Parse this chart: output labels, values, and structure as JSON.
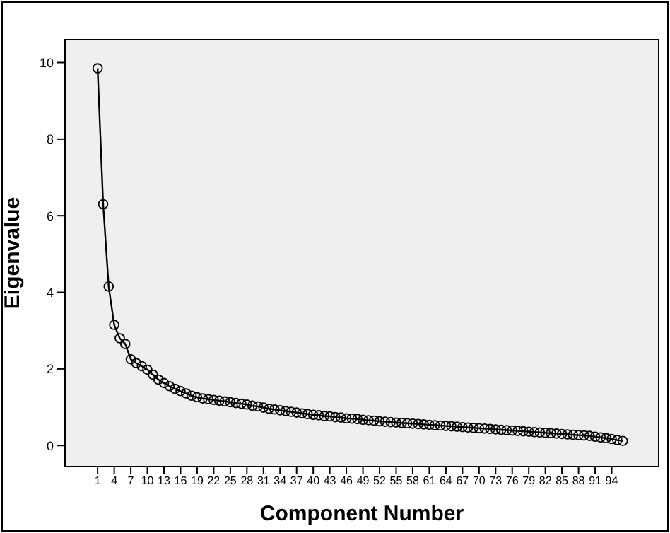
{
  "chart_data": {
    "type": "line",
    "xlabel": "Component Number",
    "ylabel": "Eigenvalue",
    "categories": [
      "1",
      null,
      null,
      "4",
      null,
      null,
      "7",
      null,
      null,
      "10",
      null,
      null,
      "13",
      null,
      null,
      "16",
      null,
      null,
      "19",
      null,
      null,
      "22",
      null,
      null,
      "25",
      null,
      null,
      "28",
      null,
      null,
      "31",
      null,
      null,
      "34",
      null,
      null,
      "37",
      null,
      null,
      "40",
      null,
      null,
      "43",
      null,
      null,
      "46",
      null,
      null,
      "49",
      null,
      null,
      "52",
      null,
      null,
      "55",
      null,
      null,
      "58",
      null,
      null,
      "61",
      null,
      null,
      "64",
      null,
      null,
      "67",
      null,
      null,
      "70",
      null,
      null,
      "73",
      null,
      null,
      "76",
      null,
      null,
      "79",
      null,
      null,
      "82",
      null,
      null,
      "85",
      null,
      null,
      "88",
      null,
      null,
      "91",
      null,
      null,
      "94",
      null,
      null
    ],
    "series": [
      {
        "color": "#000000",
        "values": [
          9.85,
          6.3,
          4.15,
          3.15,
          2.8,
          2.65,
          2.25,
          2.15,
          2.07,
          1.98,
          1.85,
          1.72,
          1.63,
          1.55,
          1.48,
          1.42,
          1.36,
          1.3,
          1.26,
          1.23,
          1.21,
          1.19,
          1.17,
          1.15,
          1.13,
          1.11,
          1.09,
          1.07,
          1.04,
          1.02,
          0.99,
          0.96,
          0.94,
          0.92,
          0.9,
          0.88,
          0.86,
          0.84,
          0.82,
          0.8,
          0.79,
          0.77,
          0.76,
          0.74,
          0.73,
          0.71,
          0.7,
          0.69,
          0.67,
          0.66,
          0.65,
          0.63,
          0.62,
          0.61,
          0.6,
          0.59,
          0.58,
          0.57,
          0.56,
          0.55,
          0.54,
          0.53,
          0.52,
          0.51,
          0.5,
          0.49,
          0.48,
          0.47,
          0.46,
          0.45,
          0.44,
          0.43,
          0.42,
          0.41,
          0.4,
          0.39,
          0.38,
          0.37,
          0.36,
          0.35,
          0.34,
          0.33,
          0.32,
          0.31,
          0.3,
          0.29,
          0.28,
          0.27,
          0.26,
          0.25,
          0.23,
          0.21,
          0.19,
          0.17,
          0.14,
          0.12
        ]
      }
    ],
    "ylim": [
      -0.55,
      10.6
    ],
    "yticks": [
      0,
      2,
      4,
      6,
      8,
      10
    ],
    "marker": "circle",
    "line_style": "solid"
  }
}
